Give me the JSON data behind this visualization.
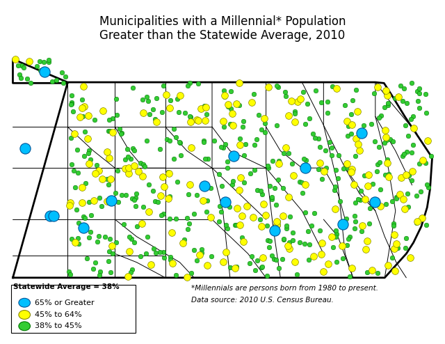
{
  "title_line1": "Municipalities with a Millennial* Population",
  "title_line2": "Greater than the Statewide Average, 2010",
  "title_fontsize": 12,
  "legend_title": "Statewide Average = 38%",
  "legend_entries": [
    {
      "label": "65% or Greater",
      "color": "#00BFFF"
    },
    {
      "label": "45% to 64%",
      "color": "#FFFF00"
    },
    {
      "label": "38% to 45%",
      "color": "#33CC33"
    }
  ],
  "footnote_line1": "*Millennials are persons born from 1980 to present.",
  "footnote_line2": "Data source: 2010 U.S. Census Bureau.",
  "bg_color": "#FFFFFF",
  "blue_color": "#00BFFF",
  "yellow_color": "#FFFF00",
  "green_color": "#33CC33",
  "note_italic": false,
  "green_n": 420,
  "yellow_n": 160,
  "green_seed": 42,
  "yellow_seed": 7,
  "blue_seed": 99,
  "blue_n": 15,
  "green_s": 22,
  "yellow_s": 50,
  "blue_s": 120
}
